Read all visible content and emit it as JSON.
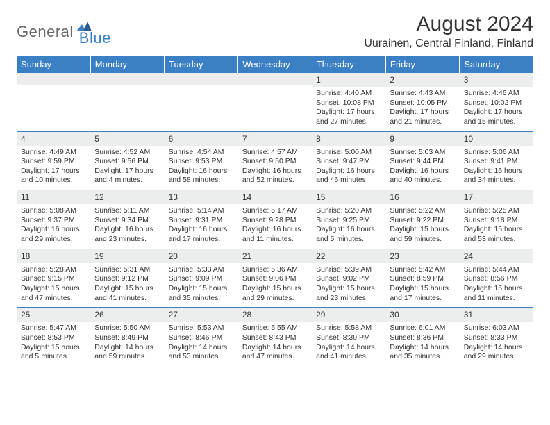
{
  "logo": {
    "part1": "General",
    "part2": "Blue"
  },
  "title": "August 2024",
  "location": "Uurainen, Central Finland, Finland",
  "colors": {
    "header_bg": "#3b7fc4",
    "header_text": "#ffffff",
    "daynum_bg": "#eceded",
    "border": "#3b7fc4",
    "logo_gray": "#6a6a6a",
    "logo_blue": "#3b7fc4"
  },
  "weekdays": [
    "Sunday",
    "Monday",
    "Tuesday",
    "Wednesday",
    "Thursday",
    "Friday",
    "Saturday"
  ],
  "weeks": [
    [
      {
        "n": "",
        "sr": "",
        "ss": "",
        "dl": ""
      },
      {
        "n": "",
        "sr": "",
        "ss": "",
        "dl": ""
      },
      {
        "n": "",
        "sr": "",
        "ss": "",
        "dl": ""
      },
      {
        "n": "",
        "sr": "",
        "ss": "",
        "dl": ""
      },
      {
        "n": "1",
        "sr": "Sunrise: 4:40 AM",
        "ss": "Sunset: 10:08 PM",
        "dl": "Daylight: 17 hours and 27 minutes."
      },
      {
        "n": "2",
        "sr": "Sunrise: 4:43 AM",
        "ss": "Sunset: 10:05 PM",
        "dl": "Daylight: 17 hours and 21 minutes."
      },
      {
        "n": "3",
        "sr": "Sunrise: 4:46 AM",
        "ss": "Sunset: 10:02 PM",
        "dl": "Daylight: 17 hours and 15 minutes."
      }
    ],
    [
      {
        "n": "4",
        "sr": "Sunrise: 4:49 AM",
        "ss": "Sunset: 9:59 PM",
        "dl": "Daylight: 17 hours and 10 minutes."
      },
      {
        "n": "5",
        "sr": "Sunrise: 4:52 AM",
        "ss": "Sunset: 9:56 PM",
        "dl": "Daylight: 17 hours and 4 minutes."
      },
      {
        "n": "6",
        "sr": "Sunrise: 4:54 AM",
        "ss": "Sunset: 9:53 PM",
        "dl": "Daylight: 16 hours and 58 minutes."
      },
      {
        "n": "7",
        "sr": "Sunrise: 4:57 AM",
        "ss": "Sunset: 9:50 PM",
        "dl": "Daylight: 16 hours and 52 minutes."
      },
      {
        "n": "8",
        "sr": "Sunrise: 5:00 AM",
        "ss": "Sunset: 9:47 PM",
        "dl": "Daylight: 16 hours and 46 minutes."
      },
      {
        "n": "9",
        "sr": "Sunrise: 5:03 AM",
        "ss": "Sunset: 9:44 PM",
        "dl": "Daylight: 16 hours and 40 minutes."
      },
      {
        "n": "10",
        "sr": "Sunrise: 5:06 AM",
        "ss": "Sunset: 9:41 PM",
        "dl": "Daylight: 16 hours and 34 minutes."
      }
    ],
    [
      {
        "n": "11",
        "sr": "Sunrise: 5:08 AM",
        "ss": "Sunset: 9:37 PM",
        "dl": "Daylight: 16 hours and 29 minutes."
      },
      {
        "n": "12",
        "sr": "Sunrise: 5:11 AM",
        "ss": "Sunset: 9:34 PM",
        "dl": "Daylight: 16 hours and 23 minutes."
      },
      {
        "n": "13",
        "sr": "Sunrise: 5:14 AM",
        "ss": "Sunset: 9:31 PM",
        "dl": "Daylight: 16 hours and 17 minutes."
      },
      {
        "n": "14",
        "sr": "Sunrise: 5:17 AM",
        "ss": "Sunset: 9:28 PM",
        "dl": "Daylight: 16 hours and 11 minutes."
      },
      {
        "n": "15",
        "sr": "Sunrise: 5:20 AM",
        "ss": "Sunset: 9:25 PM",
        "dl": "Daylight: 16 hours and 5 minutes."
      },
      {
        "n": "16",
        "sr": "Sunrise: 5:22 AM",
        "ss": "Sunset: 9:22 PM",
        "dl": "Daylight: 15 hours and 59 minutes."
      },
      {
        "n": "17",
        "sr": "Sunrise: 5:25 AM",
        "ss": "Sunset: 9:18 PM",
        "dl": "Daylight: 15 hours and 53 minutes."
      }
    ],
    [
      {
        "n": "18",
        "sr": "Sunrise: 5:28 AM",
        "ss": "Sunset: 9:15 PM",
        "dl": "Daylight: 15 hours and 47 minutes."
      },
      {
        "n": "19",
        "sr": "Sunrise: 5:31 AM",
        "ss": "Sunset: 9:12 PM",
        "dl": "Daylight: 15 hours and 41 minutes."
      },
      {
        "n": "20",
        "sr": "Sunrise: 5:33 AM",
        "ss": "Sunset: 9:09 PM",
        "dl": "Daylight: 15 hours and 35 minutes."
      },
      {
        "n": "21",
        "sr": "Sunrise: 5:36 AM",
        "ss": "Sunset: 9:06 PM",
        "dl": "Daylight: 15 hours and 29 minutes."
      },
      {
        "n": "22",
        "sr": "Sunrise: 5:39 AM",
        "ss": "Sunset: 9:02 PM",
        "dl": "Daylight: 15 hours and 23 minutes."
      },
      {
        "n": "23",
        "sr": "Sunrise: 5:42 AM",
        "ss": "Sunset: 8:59 PM",
        "dl": "Daylight: 15 hours and 17 minutes."
      },
      {
        "n": "24",
        "sr": "Sunrise: 5:44 AM",
        "ss": "Sunset: 8:56 PM",
        "dl": "Daylight: 15 hours and 11 minutes."
      }
    ],
    [
      {
        "n": "25",
        "sr": "Sunrise: 5:47 AM",
        "ss": "Sunset: 8:53 PM",
        "dl": "Daylight: 15 hours and 5 minutes."
      },
      {
        "n": "26",
        "sr": "Sunrise: 5:50 AM",
        "ss": "Sunset: 8:49 PM",
        "dl": "Daylight: 14 hours and 59 minutes."
      },
      {
        "n": "27",
        "sr": "Sunrise: 5:53 AM",
        "ss": "Sunset: 8:46 PM",
        "dl": "Daylight: 14 hours and 53 minutes."
      },
      {
        "n": "28",
        "sr": "Sunrise: 5:55 AM",
        "ss": "Sunset: 8:43 PM",
        "dl": "Daylight: 14 hours and 47 minutes."
      },
      {
        "n": "29",
        "sr": "Sunrise: 5:58 AM",
        "ss": "Sunset: 8:39 PM",
        "dl": "Daylight: 14 hours and 41 minutes."
      },
      {
        "n": "30",
        "sr": "Sunrise: 6:01 AM",
        "ss": "Sunset: 8:36 PM",
        "dl": "Daylight: 14 hours and 35 minutes."
      },
      {
        "n": "31",
        "sr": "Sunrise: 6:03 AM",
        "ss": "Sunset: 8:33 PM",
        "dl": "Daylight: 14 hours and 29 minutes."
      }
    ]
  ]
}
